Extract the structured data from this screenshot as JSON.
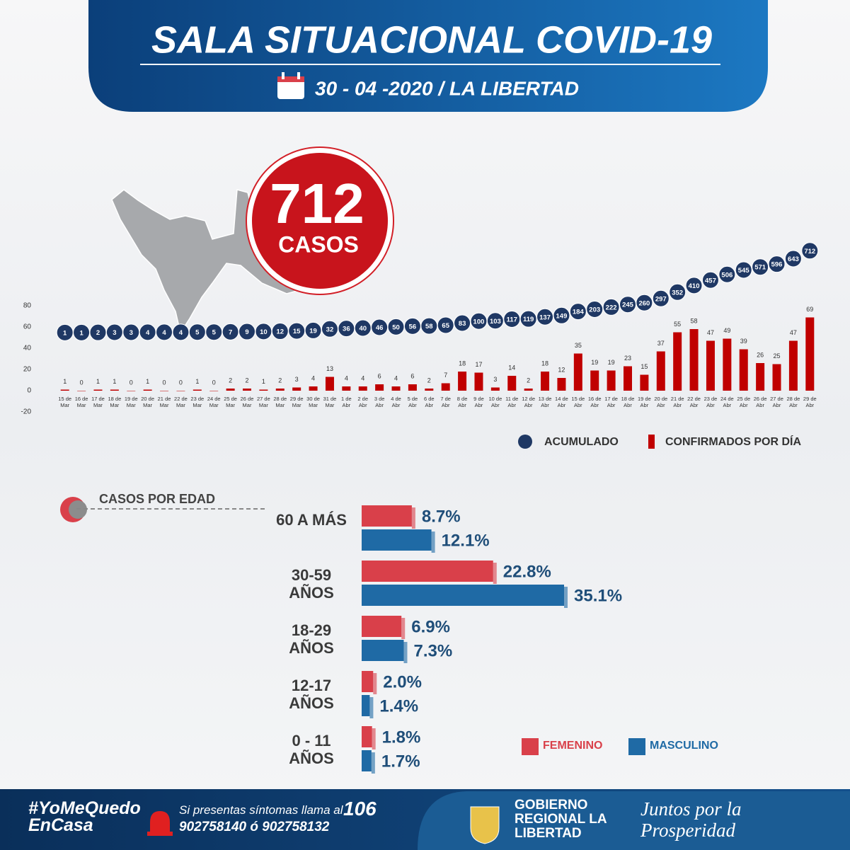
{
  "header": {
    "title": "SALA SITUACIONAL COVID-19",
    "subtitle": "30 - 04 -2020 / LA LIBERTAD"
  },
  "total": {
    "value": 712,
    "label": "CASOS"
  },
  "chart_data": [
    {
      "type": "combo",
      "categories": [
        "15 de Mar",
        "16 de Mar",
        "17 de Mar",
        "18 de Mar",
        "19 de Mar",
        "20 de Mar",
        "21 de Mar",
        "22 de Mar",
        "23 de Mar",
        "24 de Mar",
        "25 de Mar",
        "26 de Mar",
        "27 de Mar",
        "28 de Mar",
        "29 de Mar",
        "30 de Mar",
        "31 de Mar",
        "1 de Abr",
        "2 de Abr",
        "3 de Abr",
        "4 de Abr",
        "5 de Abr",
        "6 de Abr",
        "7 de Abr",
        "8 de Abr",
        "9 de Abr",
        "10 de Abr",
        "11 de Abr",
        "12 de Abr",
        "13 de Abr",
        "14 de Abr",
        "15 de Abr",
        "16 de Abr",
        "17 de Abr",
        "18 de Abr",
        "19 de Abr",
        "20 de Abr",
        "21 de Abr",
        "22 de Abr",
        "23 de Abr",
        "24 de Abr",
        "25 de Abr",
        "26 de Abr",
        "27 de Abr",
        "28 de Abr",
        "29 de Abr"
      ],
      "series": [
        {
          "name": "ACUMULADO",
          "color": "#1f3864",
          "mark": "bubble",
          "axis": "y2",
          "values": [
            1,
            1,
            2,
            3,
            3,
            4,
            4,
            4,
            5,
            5,
            7,
            9,
            10,
            12,
            15,
            19,
            32,
            36,
            40,
            46,
            50,
            56,
            58,
            65,
            83,
            100,
            103,
            117,
            119,
            137,
            149,
            184,
            203,
            222,
            245,
            260,
            297,
            352,
            410,
            457,
            506,
            545,
            571,
            596,
            643,
            712
          ]
        },
        {
          "name": "CONFIRMADOS POR DÍA",
          "color": "#c00000",
          "mark": "bar",
          "values": [
            1,
            0,
            1,
            1,
            0,
            1,
            0,
            0,
            1,
            0,
            2,
            2,
            1,
            2,
            3,
            4,
            13,
            4,
            4,
            6,
            4,
            6,
            2,
            7,
            18,
            17,
            3,
            14,
            2,
            18,
            12,
            35,
            19,
            19,
            23,
            15,
            37,
            55,
            58,
            47,
            49,
            39,
            26,
            25,
            47,
            69
          ]
        }
      ],
      "ylim": [
        -20,
        80
      ],
      "yticks": [
        -20,
        0,
        20,
        40,
        60,
        80
      ],
      "y2lim": [
        0,
        800
      ],
      "grid": false
    },
    {
      "type": "hbar",
      "title": "CASOS POR EDAD",
      "categories": [
        "60 A MÁS",
        "30-59 AÑOS",
        "18-29 AÑOS",
        "12-17 AÑOS",
        "0 - 11 AÑOS"
      ],
      "series": [
        {
          "name": "FEMENINO",
          "color": "#d9404a",
          "values": [
            8.7,
            22.8,
            6.9,
            2.0,
            1.8
          ],
          "value_labels": [
            "8.7%",
            "22.8%",
            "6.9%",
            "2.0%",
            "1.8%"
          ]
        },
        {
          "name": "MASCULINO",
          "color": "#1f6aa5",
          "values": [
            12.1,
            35.1,
            7.3,
            1.4,
            1.7
          ],
          "value_labels": [
            "12.1%",
            "35.1%",
            "7.3%",
            "1.4%",
            "1.7%"
          ]
        }
      ]
    }
  ],
  "footer": {
    "hashtag": "#YoMeQuedo EnCasa",
    "call_text": "Si presentas síntomas llama al",
    "call_number": "106",
    "phones": "902758140 ó 902758132",
    "org": "GOBIERNO REGIONAL LA LIBERTAD",
    "slogan": "Juntos por la Prosperidad"
  }
}
